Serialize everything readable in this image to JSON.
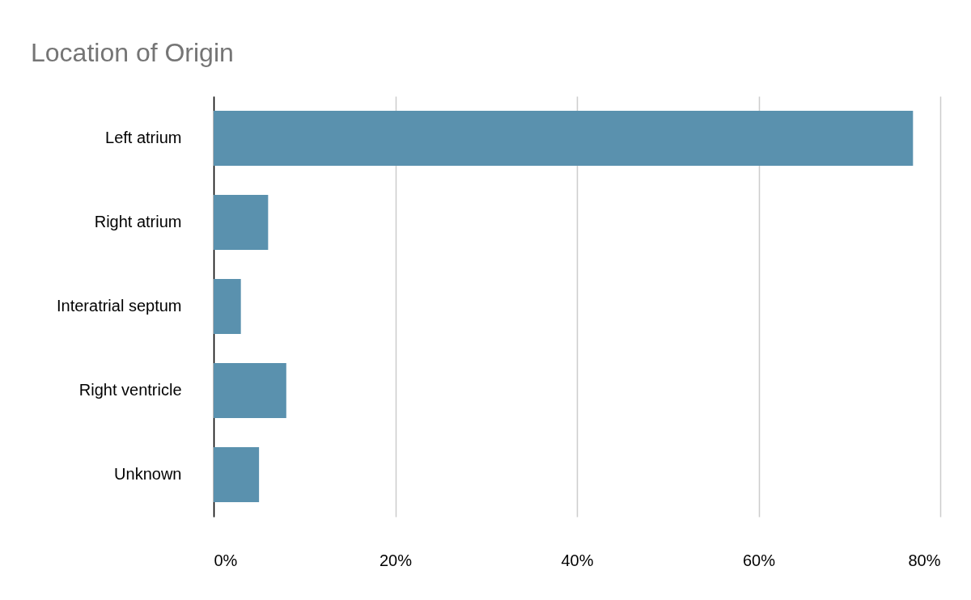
{
  "chart_data": {
    "type": "bar",
    "title": "Location of Origin",
    "orientation": "horizontal",
    "categories": [
      "Left atrium",
      "Right atrium",
      "Interatrial septum",
      "Right ventricle",
      "Unknown"
    ],
    "values": [
      77,
      6,
      3,
      8,
      5
    ],
    "color": "#5a91ae",
    "xlim": [
      0,
      80
    ],
    "xticks": [
      {
        "value": 0,
        "label": "0%"
      },
      {
        "value": 20,
        "label": "20%"
      },
      {
        "value": 40,
        "label": "40%"
      },
      {
        "value": 60,
        "label": "60%"
      },
      {
        "value": 80,
        "label": "80%"
      }
    ],
    "grid": "x"
  }
}
